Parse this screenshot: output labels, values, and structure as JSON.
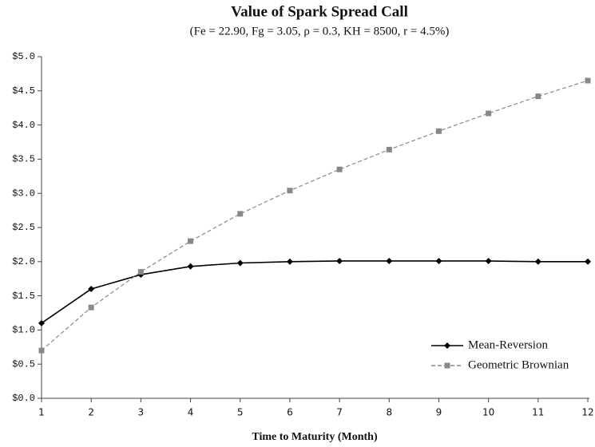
{
  "chart_data": {
    "type": "line",
    "title": "Value of Spark Spread Call",
    "subtitle": "(Fe = 22.90, Fg = 3.05, ρ = 0.3, KH = 8500, r = 4.5%)",
    "x_label": "Time to Maturity (Month)",
    "x": [
      1,
      2,
      3,
      4,
      5,
      6,
      7,
      8,
      9,
      10,
      11,
      12
    ],
    "series": [
      {
        "name": "Mean-Reversion",
        "color": "#000000",
        "values": [
          1.1,
          1.6,
          1.81,
          1.93,
          1.98,
          2.0,
          2.01,
          2.01,
          2.01,
          2.01,
          2.0,
          2.0
        ]
      },
      {
        "name": "Geometric Brownian",
        "color": "#888888",
        "values": [
          0.7,
          1.33,
          1.85,
          2.3,
          2.7,
          3.04,
          3.35,
          3.64,
          3.91,
          4.17,
          4.42,
          4.65
        ]
      }
    ],
    "xlim": [
      1,
      12
    ],
    "xticks": [
      1,
      2,
      3,
      4,
      5,
      6,
      7,
      8,
      9,
      10,
      11,
      12
    ],
    "ylim": [
      0,
      5
    ],
    "yticks": [
      {
        "value": 0,
        "label": "$0.0"
      },
      {
        "value": 0.5,
        "label": "$0.5"
      },
      {
        "value": 1,
        "label": "$1.0"
      },
      {
        "value": 1.5,
        "label": "$1.5"
      },
      {
        "value": 2,
        "label": "$2.0"
      },
      {
        "value": 2.5,
        "label": "$2.5"
      },
      {
        "value": 3,
        "label": "$3.0"
      },
      {
        "value": 3.5,
        "label": "$3.5"
      },
      {
        "value": 4,
        "label": "$4.0"
      },
      {
        "value": 4.5,
        "label": "$4.5"
      },
      {
        "value": 5,
        "label": "$5.0"
      }
    ],
    "legend": "lower right",
    "grid": false
  }
}
